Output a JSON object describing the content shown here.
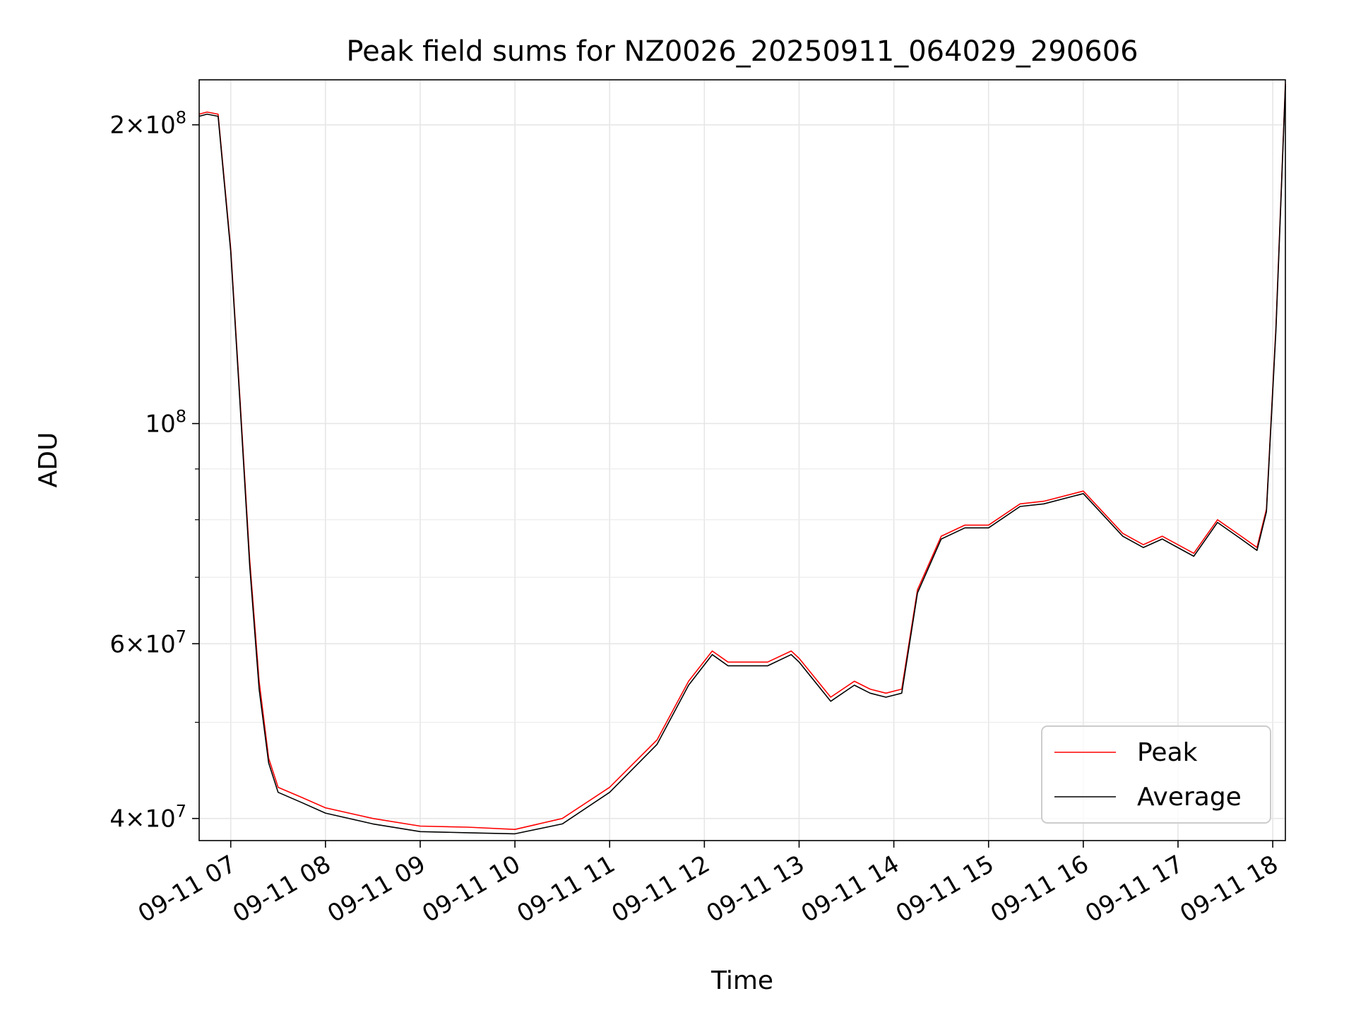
{
  "chart_data": {
    "type": "line",
    "title": "Peak field sums for NZ0026_20250911_064029_290606",
    "xlabel": "Time",
    "ylabel": "ADU",
    "y_scale": "log",
    "xlim": [
      "2025-09-11 06:40",
      "2025-09-11 18:08"
    ],
    "ylim": [
      38000000,
      222000000
    ],
    "grid": true,
    "legend_position": "lower-right",
    "x_ticks": [
      "09-11 07",
      "09-11 08",
      "09-11 09",
      "09-11 10",
      "09-11 11",
      "09-11 12",
      "09-11 13",
      "09-11 14",
      "09-11 15",
      "09-11 16",
      "09-11 17",
      "09-11 18"
    ],
    "y_tick_labels": [
      {
        "value": 40000000,
        "mantissa": "4",
        "exponent": "7"
      },
      {
        "value": 60000000,
        "mantissa": "6",
        "exponent": "7"
      },
      {
        "value": 100000000,
        "mantissa": "",
        "exponent": "8"
      },
      {
        "value": 200000000,
        "mantissa": "2",
        "exponent": "8"
      }
    ],
    "series": [
      {
        "name": "Peak",
        "color": "#ff0000",
        "x": [
          "2025-09-11 06:40",
          "2025-09-11 06:45",
          "2025-09-11 06:52",
          "2025-09-11 07:00",
          "2025-09-11 07:06",
          "2025-09-11 07:12",
          "2025-09-11 07:18",
          "2025-09-11 07:24",
          "2025-09-11 07:30",
          "2025-09-11 07:45",
          "2025-09-11 08:00",
          "2025-09-11 08:30",
          "2025-09-11 09:00",
          "2025-09-11 09:30",
          "2025-09-11 10:00",
          "2025-09-11 10:30",
          "2025-09-11 11:00",
          "2025-09-11 11:30",
          "2025-09-11 11:50",
          "2025-09-11 12:05",
          "2025-09-11 12:15",
          "2025-09-11 12:40",
          "2025-09-11 12:55",
          "2025-09-11 13:00",
          "2025-09-11 13:20",
          "2025-09-11 13:35",
          "2025-09-11 13:45",
          "2025-09-11 13:55",
          "2025-09-11 14:05",
          "2025-09-11 14:15",
          "2025-09-11 14:30",
          "2025-09-11 14:45",
          "2025-09-11 15:00",
          "2025-09-11 15:20",
          "2025-09-11 15:35",
          "2025-09-11 16:00",
          "2025-09-11 16:25",
          "2025-09-11 16:38",
          "2025-09-11 16:50",
          "2025-09-11 17:10",
          "2025-09-11 17:25",
          "2025-09-11 17:40",
          "2025-09-11 17:50",
          "2025-09-11 17:56",
          "2025-09-11 18:02",
          "2025-09-11 18:08"
        ],
        "y": [
          205000000,
          206000000,
          205000000,
          150000000,
          105000000,
          73000000,
          55000000,
          46000000,
          43000000,
          42000000,
          41000000,
          40000000,
          39300000,
          39200000,
          39000000,
          40000000,
          43000000,
          48000000,
          55000000,
          59000000,
          57500000,
          57500000,
          59000000,
          58000000,
          53000000,
          55000000,
          54000000,
          53500000,
          54000000,
          68000000,
          77000000,
          79000000,
          79000000,
          83000000,
          83500000,
          85500000,
          77500000,
          75500000,
          77000000,
          74000000,
          80000000,
          77000000,
          75000000,
          82000000,
          125000000,
          220000000
        ]
      },
      {
        "name": "Average",
        "color": "#000000",
        "x": [
          "2025-09-11 06:40",
          "2025-09-11 06:45",
          "2025-09-11 06:52",
          "2025-09-11 07:00",
          "2025-09-11 07:06",
          "2025-09-11 07:12",
          "2025-09-11 07:18",
          "2025-09-11 07:24",
          "2025-09-11 07:30",
          "2025-09-11 07:45",
          "2025-09-11 08:00",
          "2025-09-11 08:30",
          "2025-09-11 09:00",
          "2025-09-11 09:30",
          "2025-09-11 10:00",
          "2025-09-11 10:30",
          "2025-09-11 11:00",
          "2025-09-11 11:30",
          "2025-09-11 11:50",
          "2025-09-11 12:05",
          "2025-09-11 12:15",
          "2025-09-11 12:40",
          "2025-09-11 12:55",
          "2025-09-11 13:00",
          "2025-09-11 13:20",
          "2025-09-11 13:35",
          "2025-09-11 13:45",
          "2025-09-11 13:55",
          "2025-09-11 14:05",
          "2025-09-11 14:15",
          "2025-09-11 14:30",
          "2025-09-11 14:45",
          "2025-09-11 15:00",
          "2025-09-11 15:20",
          "2025-09-11 15:35",
          "2025-09-11 16:00",
          "2025-09-11 16:25",
          "2025-09-11 16:38",
          "2025-09-11 16:50",
          "2025-09-11 17:10",
          "2025-09-11 17:25",
          "2025-09-11 17:40",
          "2025-09-11 17:50",
          "2025-09-11 17:56",
          "2025-09-11 18:02",
          "2025-09-11 18:08"
        ],
        "y": [
          204000000,
          205000000,
          204000000,
          149000000,
          104000000,
          72000000,
          54000000,
          45500000,
          42500000,
          41500000,
          40500000,
          39500000,
          38800000,
          38700000,
          38600000,
          39500000,
          42500000,
          47500000,
          54500000,
          58500000,
          57000000,
          57000000,
          58500000,
          57500000,
          52500000,
          54500000,
          53500000,
          53000000,
          53500000,
          67500000,
          76500000,
          78500000,
          78500000,
          82500000,
          83000000,
          85000000,
          77000000,
          75000000,
          76500000,
          73500000,
          79500000,
          76500000,
          74500000,
          81500000,
          124000000,
          219000000
        ]
      }
    ]
  }
}
